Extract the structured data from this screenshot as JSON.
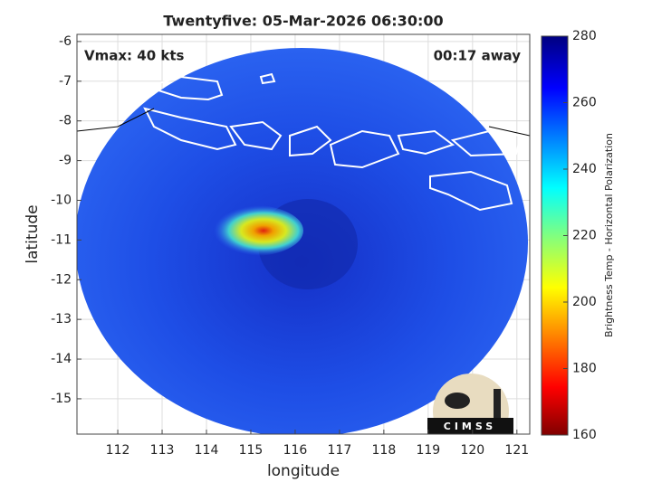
{
  "title": "Twentyfive: 05-Mar-2026 06:30:00",
  "annotations": {
    "vmax": "Vmax: 40 kts",
    "time_away": "00:17 away"
  },
  "x_axis": {
    "label": "longitude",
    "lim": [
      111.08,
      121.29
    ],
    "ticks": [
      112,
      113,
      114,
      115,
      116,
      117,
      118,
      119,
      120,
      121
    ]
  },
  "y_axis": {
    "label": "latitude",
    "lim": [
      -5.82,
      -15.89
    ],
    "ticks": [
      -6,
      -7,
      -8,
      -9,
      -10,
      -11,
      -12,
      -13,
      -14,
      -15
    ]
  },
  "colorbar": {
    "label": "Brightness Temp - Horizontal Polarization",
    "lim": [
      160,
      280
    ],
    "ticks": [
      160,
      180,
      200,
      220,
      240,
      260,
      280
    ]
  },
  "logo": "CIMSS"
}
